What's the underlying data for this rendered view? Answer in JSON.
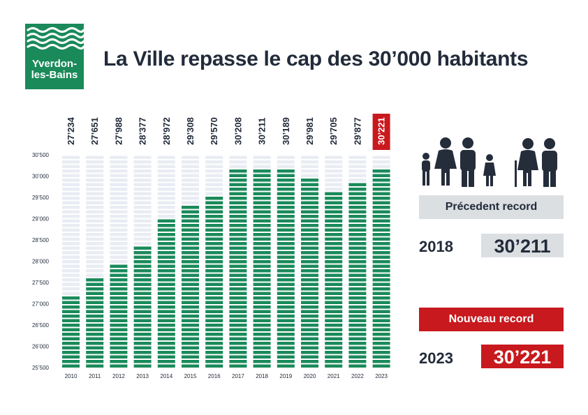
{
  "logo": {
    "line1": "Yverdon-",
    "line2": "les-Bains",
    "color": "#1a8a5a"
  },
  "title": "La Ville repasse le cap des 30’000 habitants",
  "previous_record": {
    "label": "Précedent record",
    "year": "2018",
    "value": "30’211"
  },
  "new_record": {
    "label": "Nouveau record",
    "year": "2023",
    "value": "30’221"
  },
  "icons": {
    "family": "family-icon",
    "seniors": "seniors-icon"
  },
  "colors": {
    "bar": "#1a8a5a",
    "bar_empty": "#e9ecf3",
    "highlight": "#c8191e",
    "text": "#222b3a"
  },
  "chart_data": {
    "type": "bar",
    "categories": [
      "2010",
      "2011",
      "2012",
      "2013",
      "2014",
      "2015",
      "2016",
      "2017",
      "2018",
      "2019",
      "2020",
      "2021",
      "2022",
      "2023"
    ],
    "values": [
      27234,
      27651,
      27988,
      28377,
      28972,
      29308,
      29570,
      30208,
      30211,
      30189,
      29981,
      29705,
      29877,
      30221
    ],
    "value_labels": [
      "27’234",
      "27’651",
      "27’988",
      "28’377",
      "28’972",
      "29’308",
      "29’570",
      "30’208",
      "30’211",
      "30’189",
      "29’981",
      "29’705",
      "29’877",
      "30’221"
    ],
    "highlight_index": 13,
    "y_ticks": [
      25500,
      26000,
      26500,
      27000,
      27500,
      28000,
      28500,
      29000,
      29500,
      30000,
      30500
    ],
    "y_tick_labels": [
      "25’500",
      "26’000",
      "26’500",
      "27’000",
      "27’500",
      "28’000",
      "28’500",
      "29’000",
      "29’500",
      "30’000",
      "30’500"
    ],
    "ylim": [
      25500,
      30500
    ],
    "grid": false,
    "legend": "none"
  }
}
